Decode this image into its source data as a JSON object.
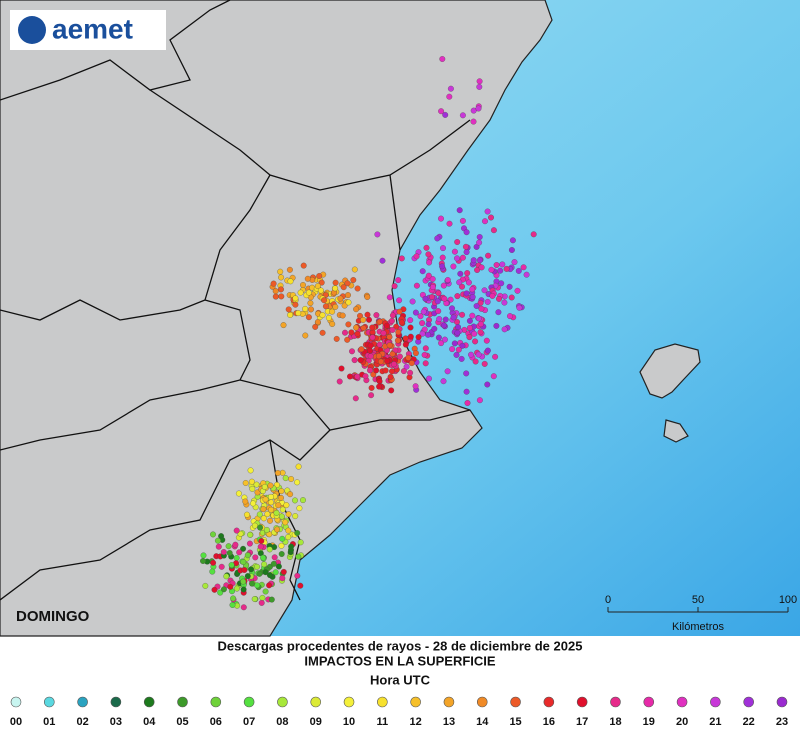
{
  "logo": "aemet",
  "day_label": "DOMINGO",
  "scale": {
    "ticks": [
      0,
      50,
      100
    ],
    "label": "Kilómetros"
  },
  "caption": {
    "line1": "Descargas procedentes de rayos - 28 de diciembre de 2025",
    "line2": "IMPACTOS EN LA SUPERFICIE",
    "legend_title": "Hora UTC"
  },
  "legend": [
    {
      "label": "00",
      "color": "#c8f5f0"
    },
    {
      "label": "01",
      "color": "#5ad8e0"
    },
    {
      "label": "02",
      "color": "#2aa3c0"
    },
    {
      "label": "03",
      "color": "#1a6a4a"
    },
    {
      "label": "04",
      "color": "#1d7a1d"
    },
    {
      "label": "05",
      "color": "#3d9a2a"
    },
    {
      "label": "06",
      "color": "#6fd23a"
    },
    {
      "label": "07",
      "color": "#55e040"
    },
    {
      "label": "08",
      "color": "#a8e83a"
    },
    {
      "label": "09",
      "color": "#dcea36"
    },
    {
      "label": "10",
      "color": "#f4f03a"
    },
    {
      "label": "11",
      "color": "#f7e12e"
    },
    {
      "label": "12",
      "color": "#f6c02a"
    },
    {
      "label": "13",
      "color": "#f3a428"
    },
    {
      "label": "14",
      "color": "#f08a26"
    },
    {
      "label": "15",
      "color": "#ec5a28"
    },
    {
      "label": "16",
      "color": "#e82a2a"
    },
    {
      "label": "17",
      "color": "#e0102c"
    },
    {
      "label": "18",
      "color": "#e62a8a"
    },
    {
      "label": "19",
      "color": "#e62aa8"
    },
    {
      "label": "20",
      "color": "#e030c0"
    },
    {
      "label": "21",
      "color": "#c838d8"
    },
    {
      "label": "22",
      "color": "#a030d8"
    },
    {
      "label": "23",
      "color": "#9a2ad0"
    }
  ]
}
